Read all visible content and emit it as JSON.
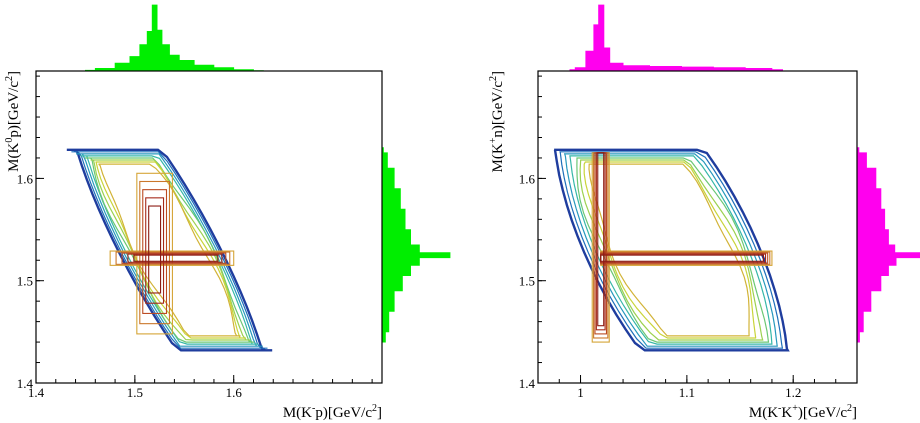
{
  "chart_data": [
    {
      "type": "contour",
      "xlabel_parts": [
        "M(K",
        "-",
        "p)[GeV/c",
        "2",
        "]"
      ],
      "ylabel_parts": [
        "M(K",
        "0",
        "p)[GeV/c",
        "2",
        "]"
      ],
      "xlim": [
        1.4,
        1.75
      ],
      "ylim": [
        1.4,
        1.705
      ],
      "xticks": [
        "1.4",
        "1.5",
        "1.6"
      ],
      "yticks": [
        "1.4",
        "1.5",
        "1.6"
      ],
      "xtick_values": [
        1.4,
        1.5,
        1.6
      ],
      "ytick_values": [
        1.4,
        1.5,
        1.6
      ],
      "band_x": 1.52,
      "band_y": 1.522,
      "proj_color": "#00ee00",
      "top_projection": {
        "x": [
          1.45,
          1.47,
          1.49,
          1.5,
          1.51,
          1.515,
          1.52,
          1.525,
          1.53,
          1.54,
          1.55,
          1.57,
          1.59,
          1.61,
          1.63
        ],
        "y": [
          0.01,
          0.04,
          0.12,
          0.22,
          0.4,
          0.6,
          1.0,
          0.62,
          0.4,
          0.24,
          0.16,
          0.09,
          0.05,
          0.02,
          0.005
        ]
      },
      "side_projection": {
        "y": [
          1.44,
          1.46,
          1.48,
          1.5,
          1.51,
          1.52,
          1.525,
          1.53,
          1.54,
          1.56,
          1.58,
          1.6,
          1.62,
          1.63
        ],
        "x": [
          0.05,
          0.1,
          0.18,
          0.3,
          0.42,
          0.55,
          1.0,
          0.55,
          0.42,
          0.34,
          0.27,
          0.18,
          0.08,
          0.02
        ]
      }
    },
    {
      "type": "contour",
      "xlabel_parts": [
        "M(K",
        "-",
        "K",
        "+",
        ")[GeV/c",
        "2",
        "]"
      ],
      "ylabel_parts": [
        "M(K",
        "+",
        "n)[GeV/c",
        "2",
        "]"
      ],
      "xlim": [
        0.96,
        1.26
      ],
      "ylim": [
        1.4,
        1.705
      ],
      "xticks": [
        "1",
        "1.1",
        "1.2"
      ],
      "yticks": [
        "1.4",
        "1.5",
        "1.6"
      ],
      "xtick_values": [
        1.0,
        1.1,
        1.2
      ],
      "ytick_values": [
        1.4,
        1.5,
        1.6
      ],
      "band_x": 1.019,
      "band_y": 1.522,
      "proj_color": "#ff00ee",
      "top_projection": {
        "x": [
          0.99,
          1.0,
          1.01,
          1.015,
          1.019,
          1.025,
          1.03,
          1.05,
          1.08,
          1.11,
          1.14,
          1.17,
          1.19
        ],
        "y": [
          0.02,
          0.05,
          0.3,
          0.7,
          1.0,
          0.35,
          0.12,
          0.08,
          0.07,
          0.06,
          0.05,
          0.04,
          0.02
        ]
      },
      "side_projection": {
        "y": [
          1.44,
          1.46,
          1.48,
          1.5,
          1.51,
          1.52,
          1.525,
          1.53,
          1.54,
          1.56,
          1.58,
          1.6,
          1.62,
          1.63
        ],
        "x": [
          0.04,
          0.1,
          0.22,
          0.38,
          0.5,
          0.62,
          1.0,
          0.6,
          0.5,
          0.44,
          0.38,
          0.3,
          0.15,
          0.03
        ]
      }
    }
  ]
}
